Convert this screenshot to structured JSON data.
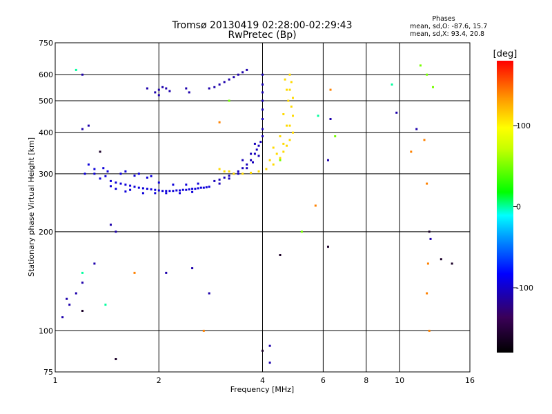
{
  "chart_data": {
    "type": "scatter",
    "title": "Tromsø 20130419 02:28:00-02:29:43",
    "subtitle": "RwPretec (Bp)",
    "xlabel": "Frequency [MHz]",
    "ylabel": "Stationary phase Virtual Height [km]",
    "x_scale": "log",
    "y_scale": "log",
    "xlim": [
      1,
      16
    ],
    "ylim": [
      75,
      750
    ],
    "x_ticks": [
      1,
      2,
      4,
      6,
      8,
      10,
      16
    ],
    "x_tick_labels": [
      "1",
      "2",
      "4",
      "6",
      "8",
      "10",
      "16"
    ],
    "x_grid": [
      2,
      4,
      6,
      8,
      10
    ],
    "y_ticks": [
      75,
      100,
      200,
      300,
      400,
      500,
      600,
      750
    ],
    "y_tick_labels": [
      "75",
      "100",
      "200",
      "300",
      "400",
      "500",
      "600",
      "750"
    ],
    "y_grid": [
      100,
      200,
      300,
      400,
      500,
      600
    ],
    "grid": true,
    "stats": {
      "heading": "Phases",
      "line_o": "mean, sd,O: -87.6, 15.7",
      "line_x": "mean, sd,X:  93.4, 20.8"
    },
    "colorbar": {
      "label": "[deg]",
      "range": [
        -180,
        180
      ],
      "ticks": [
        100,
        0,
        -100
      ],
      "tick_labels": [
        "100",
        "0",
        "-100"
      ]
    },
    "series": [
      {
        "trace": "o-low",
        "phase": -95,
        "points": [
          [
            1.3,
            300
          ],
          [
            1.35,
            290
          ],
          [
            1.4,
            295
          ],
          [
            1.45,
            285
          ],
          [
            1.5,
            282
          ],
          [
            1.55,
            280
          ],
          [
            1.6,
            278
          ],
          [
            1.65,
            276
          ],
          [
            1.7,
            274
          ],
          [
            1.75,
            272
          ],
          [
            1.8,
            271
          ],
          [
            1.85,
            270
          ],
          [
            1.9,
            269
          ],
          [
            1.95,
            268
          ],
          [
            2.0,
            267
          ],
          [
            2.05,
            266
          ],
          [
            2.1,
            266
          ],
          [
            2.15,
            266
          ],
          [
            2.2,
            266
          ],
          [
            2.25,
            267
          ],
          [
            2.3,
            267
          ],
          [
            2.35,
            268
          ],
          [
            2.4,
            268
          ],
          [
            2.45,
            269
          ],
          [
            2.5,
            270
          ],
          [
            2.55,
            270
          ],
          [
            2.6,
            271
          ],
          [
            2.65,
            272
          ],
          [
            2.7,
            272
          ],
          [
            2.75,
            273
          ],
          [
            2.8,
            274
          ],
          [
            1.42,
            305
          ],
          [
            1.55,
            300
          ],
          [
            1.7,
            296
          ],
          [
            1.85,
            292
          ],
          [
            2.0,
            282
          ],
          [
            2.2,
            278
          ],
          [
            2.4,
            278
          ],
          [
            2.6,
            280
          ],
          [
            1.5,
            270
          ],
          [
            1.65,
            268
          ],
          [
            1.8,
            262
          ],
          [
            1.95,
            262
          ],
          [
            2.1,
            262
          ],
          [
            2.3,
            262
          ],
          [
            2.5,
            264
          ],
          [
            1.38,
            312
          ],
          [
            1.6,
            305
          ],
          [
            1.75,
            300
          ],
          [
            1.9,
            295
          ],
          [
            1.3,
            310
          ],
          [
            1.25,
            320
          ],
          [
            1.22,
            300
          ],
          [
            1.45,
            275
          ],
          [
            1.6,
            265
          ]
        ]
      },
      {
        "trace": "o-rise",
        "phase": -105,
        "points": [
          [
            2.9,
            285
          ],
          [
            3.0,
            288
          ],
          [
            3.1,
            292
          ],
          [
            3.2,
            296
          ],
          [
            3.3,
            300
          ],
          [
            3.4,
            305
          ],
          [
            3.5,
            312
          ],
          [
            3.6,
            320
          ],
          [
            3.7,
            330
          ],
          [
            3.8,
            345
          ],
          [
            3.85,
            355
          ],
          [
            3.9,
            365
          ],
          [
            3.95,
            375
          ],
          [
            4.0,
            390
          ],
          [
            4.0,
            410
          ],
          [
            4.0,
            440
          ],
          [
            4.0,
            470
          ],
          [
            4.0,
            500
          ],
          [
            4.0,
            530
          ],
          [
            4.0,
            560
          ],
          [
            4.0,
            600
          ],
          [
            3.0,
            280
          ],
          [
            3.2,
            290
          ],
          [
            3.4,
            300
          ],
          [
            3.6,
            312
          ],
          [
            3.75,
            325
          ],
          [
            3.9,
            340
          ],
          [
            3.5,
            330
          ],
          [
            3.7,
            345
          ],
          [
            3.8,
            370
          ]
        ]
      },
      {
        "trace": "o-high",
        "phase": -110,
        "points": [
          [
            1.95,
            530
          ],
          [
            2.0,
            540
          ],
          [
            2.05,
            550
          ],
          [
            2.1,
            545
          ],
          [
            2.15,
            535
          ],
          [
            2.4,
            545
          ],
          [
            2.8,
            545
          ],
          [
            2.9,
            550
          ],
          [
            3.0,
            560
          ],
          [
            3.1,
            570
          ],
          [
            3.2,
            580
          ],
          [
            3.3,
            590
          ],
          [
            3.4,
            600
          ],
          [
            3.5,
            610
          ],
          [
            3.6,
            620
          ],
          [
            2.45,
            530
          ],
          [
            2.0,
            520
          ],
          [
            1.85,
            545
          ]
        ]
      },
      {
        "trace": "x-low",
        "phase": 110,
        "points": [
          [
            3.0,
            310
          ],
          [
            3.1,
            305
          ],
          [
            3.2,
            305
          ],
          [
            3.3,
            300
          ],
          [
            3.5,
            300
          ],
          [
            3.7,
            302
          ],
          [
            3.9,
            305
          ],
          [
            4.1,
            310
          ],
          [
            4.3,
            320
          ],
          [
            4.5,
            335
          ],
          [
            4.6,
            350
          ],
          [
            4.7,
            365
          ],
          [
            4.8,
            380
          ],
          [
            4.9,
            400
          ],
          [
            4.8,
            420
          ],
          [
            4.9,
            450
          ],
          [
            4.85,
            480
          ],
          [
            4.9,
            510
          ],
          [
            4.8,
            540
          ],
          [
            4.85,
            570
          ],
          [
            4.8,
            600
          ],
          [
            4.2,
            330
          ],
          [
            4.4,
            345
          ],
          [
            4.6,
            370
          ],
          [
            4.3,
            360
          ],
          [
            4.5,
            390
          ],
          [
            4.7,
            420
          ],
          [
            4.6,
            455
          ],
          [
            4.75,
            500
          ],
          [
            4.7,
            540
          ],
          [
            4.65,
            580
          ]
        ]
      },
      {
        "trace": "scatter",
        "phase": -110,
        "points": [
          [
            1.05,
            110
          ],
          [
            1.1,
            120
          ],
          [
            1.15,
            130
          ],
          [
            1.2,
            140
          ],
          [
            1.08,
            125
          ],
          [
            1.2,
            410
          ],
          [
            1.25,
            420
          ],
          [
            1.2,
            600
          ],
          [
            1.3,
            160
          ],
          [
            1.5,
            200
          ],
          [
            1.45,
            210
          ],
          [
            2.1,
            150
          ],
          [
            2.5,
            155
          ],
          [
            2.8,
            130
          ],
          [
            4.2,
            80
          ],
          [
            4.2,
            90
          ],
          [
            6.3,
            440
          ],
          [
            6.2,
            330
          ],
          [
            9.8,
            460
          ],
          [
            11.2,
            410
          ],
          [
            12.3,
            190
          ]
        ]
      },
      {
        "trace": "scatter",
        "phase": 0,
        "points": [
          [
            1.15,
            620
          ],
          [
            1.2,
            150
          ],
          [
            1.4,
            120
          ],
          [
            5.8,
            450
          ],
          [
            9.5,
            560
          ]
        ]
      },
      {
        "trace": "scatter",
        "phase": 50,
        "points": [
          [
            3.2,
            500
          ],
          [
            5.2,
            200
          ],
          [
            6.5,
            390
          ],
          [
            12.5,
            550
          ],
          [
            4.5,
            330
          ],
          [
            11.5,
            640
          ],
          [
            12.0,
            600
          ]
        ]
      },
      {
        "trace": "scatter",
        "phase": 140,
        "points": [
          [
            1.7,
            150
          ],
          [
            2.7,
            100
          ],
          [
            3.0,
            430
          ],
          [
            5.7,
            240
          ],
          [
            6.3,
            540
          ],
          [
            12.0,
            280
          ],
          [
            12.1,
            160
          ],
          [
            12.2,
            100
          ],
          [
            12.0,
            130
          ],
          [
            10.8,
            350
          ],
          [
            11.8,
            380
          ]
        ]
      },
      {
        "trace": "scatter",
        "phase": -160,
        "points": [
          [
            1.2,
            115
          ],
          [
            1.35,
            350
          ],
          [
            1.5,
            82
          ],
          [
            4.0,
            87
          ],
          [
            6.2,
            180
          ],
          [
            4.5,
            170
          ],
          [
            14.2,
            160
          ],
          [
            13.2,
            165
          ],
          [
            12.2,
            200
          ]
        ]
      }
    ]
  }
}
